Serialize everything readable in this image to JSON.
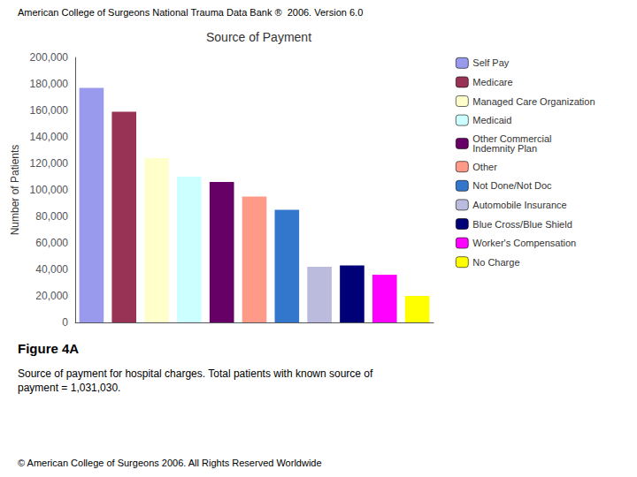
{
  "chart_data": {
    "type": "bar",
    "title": "Source of Payment",
    "ylabel": "Number of Patients",
    "annotations": [
      "American College of Surgeons National Trauma Data Bank ®  2006. Version 6.0",
      "Figure 4A",
      "Source of payment for hospital charges. Total patients with known source of\npayment = 1,031,030.",
      "© American College of Surgeons 2006. All Rights Reserved Worldwide"
    ],
    "categories": [
      "Self Pay",
      "Medicare",
      "Managed Care Organization",
      "Medicaid",
      "Other Commercial\nIndemnity Plan",
      "Other",
      "Not Done/Not Doc",
      "Automobile Insurance",
      "Blue Cross/Blue Shield",
      "Worker's Compensation",
      "No Charge"
    ],
    "values": [
      177000,
      159000,
      124000,
      110000,
      106000,
      95000,
      85000,
      42000,
      43000,
      36000,
      20000
    ],
    "colors": [
      "#9999EE",
      "#993355",
      "#FFFFCC",
      "#CCFFFF",
      "#660066",
      "#FF9988",
      "#3377CC",
      "#BBBBDD",
      "#000077",
      "#FF00FF",
      "#FFFF00"
    ],
    "ylim": [
      0,
      200000
    ],
    "yticks": [
      0,
      {
        "value": 20000,
        "label": "20,000"
      },
      {
        "value": 40000,
        "label": "40,000"
      },
      {
        "value": 60000,
        "label": "60,000"
      },
      {
        "value": 80000,
        "label": "80,000"
      },
      {
        "value": 100000,
        "label": "100,000"
      },
      {
        "value": 120000,
        "label": "120,000"
      },
      {
        "value": 140000,
        "label": "140,000"
      },
      {
        "value": 160000,
        "label": "160,000"
      },
      {
        "value": 180000,
        "label": "180,000"
      },
      {
        "value": 200000,
        "label": "200,000"
      }
    ],
    "legend": "right",
    "grid": false,
    "tick_labels": "y"
  }
}
